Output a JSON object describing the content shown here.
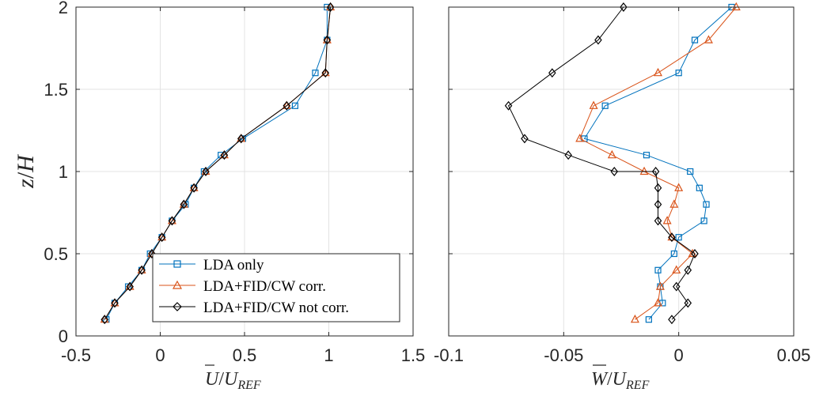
{
  "chart_data": [
    {
      "type": "line",
      "ylabel": "z/H",
      "ylabel_main": "z",
      "ylabel_sub": "H",
      "xlabel_num": "U",
      "xlabel_den": "U",
      "xlabel_den_sub": "REF",
      "xlim": [
        -0.5,
        1.5
      ],
      "ylim": [
        0,
        2
      ],
      "xticks": [
        "-0.5",
        "0",
        "0.5",
        "1",
        "1.5"
      ],
      "yticks": [
        "0",
        "0.5",
        "1",
        "1.5",
        "2"
      ],
      "grid": true,
      "legend": "bottom-right",
      "series": [
        {
          "name": "LDA only",
          "marker": "square",
          "color": "#0072BD",
          "points": [
            [
              -0.32,
              0.1
            ],
            [
              -0.27,
              0.2
            ],
            [
              -0.19,
              0.3
            ],
            [
              -0.11,
              0.4
            ],
            [
              -0.06,
              0.5
            ],
            [
              0.01,
              0.6
            ],
            [
              0.07,
              0.7
            ],
            [
              0.15,
              0.8
            ],
            [
              0.2,
              0.9
            ],
            [
              0.26,
              1.0
            ],
            [
              0.36,
              1.1
            ],
            [
              0.49,
              1.2
            ],
            [
              0.8,
              1.4
            ],
            [
              0.92,
              1.6
            ],
            [
              0.99,
              1.8
            ],
            [
              0.99,
              2.0
            ]
          ]
        },
        {
          "name": "LDA+FID/CW corr.",
          "marker": "triangle",
          "color": "#D95319",
          "points": [
            [
              -0.33,
              0.1
            ],
            [
              -0.27,
              0.2
            ],
            [
              -0.18,
              0.3
            ],
            [
              -0.11,
              0.4
            ],
            [
              -0.05,
              0.5
            ],
            [
              0.01,
              0.6
            ],
            [
              0.07,
              0.7
            ],
            [
              0.14,
              0.8
            ],
            [
              0.2,
              0.9
            ],
            [
              0.27,
              1.0
            ],
            [
              0.38,
              1.1
            ],
            [
              0.48,
              1.2
            ],
            [
              0.75,
              1.4
            ],
            [
              0.98,
              1.6
            ],
            [
              0.99,
              1.8
            ],
            [
              1.01,
              2.0
            ]
          ]
        },
        {
          "name": "LDA+FID/CW not corr.",
          "marker": "diamond",
          "color": "#000000",
          "points": [
            [
              -0.33,
              0.1
            ],
            [
              -0.27,
              0.2
            ],
            [
              -0.18,
              0.3
            ],
            [
              -0.11,
              0.4
            ],
            [
              -0.05,
              0.5
            ],
            [
              0.01,
              0.6
            ],
            [
              0.07,
              0.7
            ],
            [
              0.14,
              0.8
            ],
            [
              0.2,
              0.9
            ],
            [
              0.27,
              1.0
            ],
            [
              0.38,
              1.1
            ],
            [
              0.48,
              1.2
            ],
            [
              0.75,
              1.4
            ],
            [
              0.98,
              1.6
            ],
            [
              0.99,
              1.8
            ],
            [
              1.01,
              2.0
            ]
          ]
        }
      ]
    },
    {
      "type": "line",
      "xlabel_num": "W",
      "xlabel_den": "U",
      "xlabel_den_sub": "REF",
      "xlim": [
        -0.1,
        0.05
      ],
      "ylim": [
        0,
        2
      ],
      "xticks": [
        "-0.1",
        "-0.05",
        "0",
        "0.05"
      ],
      "grid": true,
      "series": [
        {
          "name": "LDA only",
          "marker": "square",
          "color": "#0072BD",
          "points": [
            [
              -0.013,
              0.1
            ],
            [
              -0.007,
              0.2
            ],
            [
              -0.008,
              0.3
            ],
            [
              -0.009,
              0.4
            ],
            [
              -0.002,
              0.5
            ],
            [
              0.0,
              0.6
            ],
            [
              0.011,
              0.7
            ],
            [
              0.012,
              0.8
            ],
            [
              0.009,
              0.9
            ],
            [
              0.005,
              1.0
            ],
            [
              -0.014,
              1.1
            ],
            [
              -0.041,
              1.2
            ],
            [
              -0.032,
              1.4
            ],
            [
              0.0,
              1.6
            ],
            [
              0.007,
              1.8
            ],
            [
              0.023,
              2.0
            ]
          ]
        },
        {
          "name": "LDA+FID/CW corr.",
          "marker": "triangle",
          "color": "#D95319",
          "points": [
            [
              -0.019,
              0.1
            ],
            [
              -0.009,
              0.2
            ],
            [
              -0.008,
              0.3
            ],
            [
              -0.001,
              0.4
            ],
            [
              0.006,
              0.5
            ],
            [
              -0.003,
              0.6
            ],
            [
              -0.005,
              0.7
            ],
            [
              -0.002,
              0.8
            ],
            [
              0.0,
              0.9
            ],
            [
              -0.015,
              1.0
            ],
            [
              -0.029,
              1.1
            ],
            [
              -0.043,
              1.2
            ],
            [
              -0.037,
              1.4
            ],
            [
              -0.009,
              1.6
            ],
            [
              0.013,
              1.8
            ],
            [
              0.025,
              2.0
            ]
          ]
        },
        {
          "name": "LDA+FID/CW not corr.",
          "marker": "diamond",
          "color": "#000000",
          "points": [
            [
              -0.003,
              0.1
            ],
            [
              0.004,
              0.2
            ],
            [
              -0.001,
              0.3
            ],
            [
              0.004,
              0.4
            ],
            [
              0.007,
              0.5
            ],
            [
              -0.003,
              0.6
            ],
            [
              -0.009,
              0.7
            ],
            [
              -0.009,
              0.8
            ],
            [
              -0.009,
              0.9
            ],
            [
              -0.01,
              1.0
            ],
            [
              -0.028,
              1.0
            ],
            [
              -0.048,
              1.1
            ],
            [
              -0.067,
              1.2
            ],
            [
              -0.074,
              1.4
            ],
            [
              -0.055,
              1.6
            ],
            [
              -0.035,
              1.8
            ],
            [
              -0.024,
              2.0
            ]
          ]
        }
      ]
    }
  ]
}
